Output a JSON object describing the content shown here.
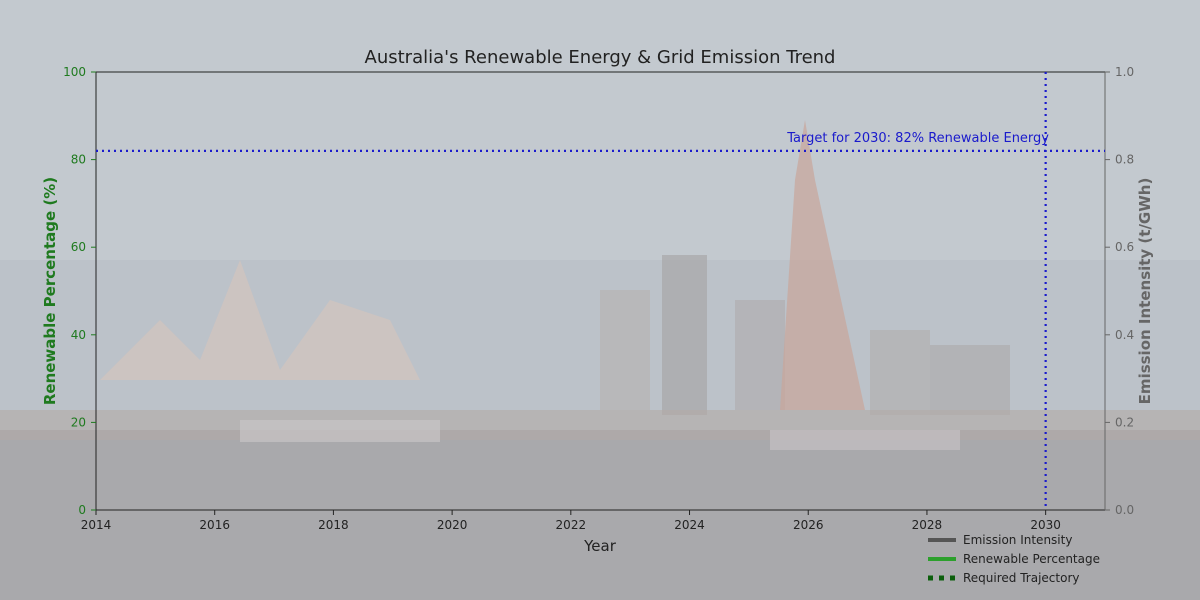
{
  "chart_data": {
    "type": "line",
    "title": "Australia's Renewable Energy & Grid Emission Trend",
    "xlabel": "Year",
    "ylabel_left": "Renewable Percentage (%)",
    "ylabel_right": "Emission Intensity (t/GWh)",
    "xlim": [
      2014,
      2031
    ],
    "ylim_left": [
      0,
      100
    ],
    "ylim_right": [
      0,
      1.0
    ],
    "x_ticks": [
      "2014",
      "2016",
      "2018",
      "2020",
      "2022",
      "2024",
      "2026",
      "2028",
      "2030"
    ],
    "y_left_ticks": [
      "0",
      "20",
      "40",
      "60",
      "80",
      "100"
    ],
    "y_right_ticks": [
      "0.0",
      "0.2",
      "0.4",
      "0.6",
      "0.8",
      "1.0"
    ],
    "series": [
      {
        "name": "Emission Intensity",
        "x": [],
        "values": []
      },
      {
        "name": "Renewable Percentage",
        "x": [],
        "values": []
      },
      {
        "name": "Required Trajectory",
        "x": [],
        "values": []
      }
    ],
    "target": {
      "year": 2030,
      "value": 82,
      "label": "Target for 2030: 82% Renewable Energy"
    },
    "grid": false,
    "legend_position": "bottom-right",
    "colors": {
      "left_axis": "#1f7a1f",
      "right_axis": "#666666",
      "target": "#1a1acc",
      "emission": "#555555",
      "renewable": "#2ca02c",
      "trajectory": "#0b5e0b"
    }
  }
}
